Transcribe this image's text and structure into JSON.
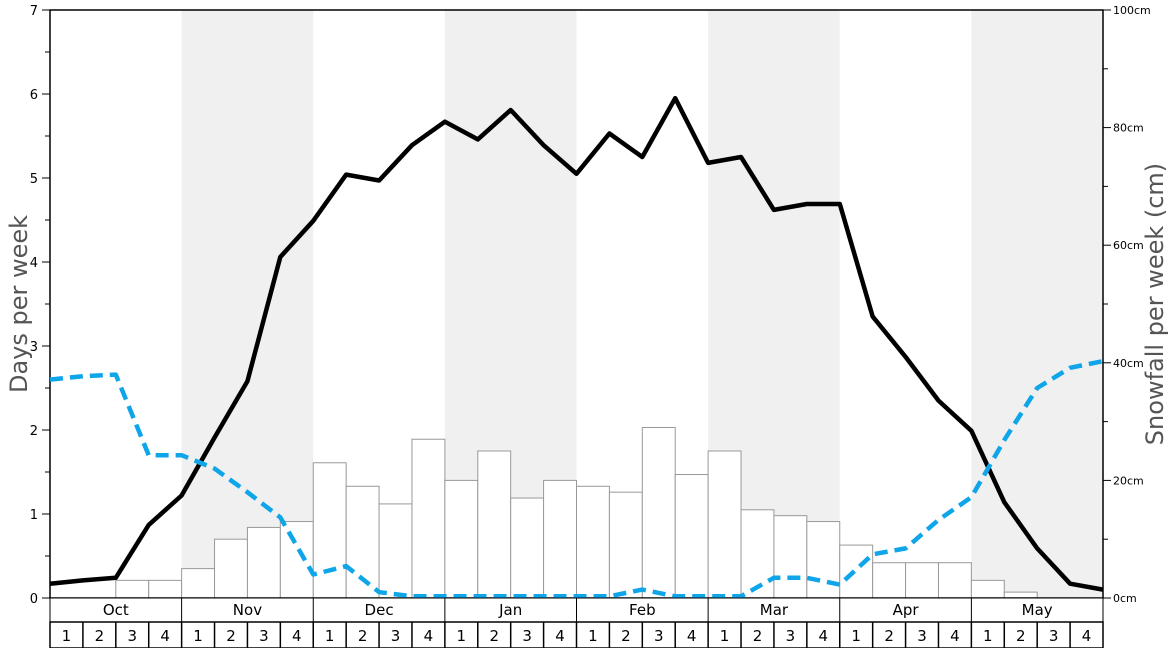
{
  "chart_data": {
    "type": "bar",
    "ylabel_left": "Days per week",
    "ylabel_right": "Snowfall per week (cm)",
    "left_axis": {
      "min": 0,
      "max": 7,
      "ticks": [
        "0",
        "1",
        "2",
        "3",
        "4",
        "5",
        "6",
        "7"
      ]
    },
    "right_axis": {
      "min": 0,
      "max": 100,
      "ticks": [
        "0cm",
        "20cm",
        "40cm",
        "60cm",
        "80cm",
        "100cm"
      ]
    },
    "months": [
      "Oct",
      "Nov",
      "Dec",
      "Jan",
      "Feb",
      "Mar",
      "Apr",
      "May"
    ],
    "week_labels": [
      "1",
      "2",
      "3",
      "4"
    ],
    "shaded_months": [
      "Nov",
      "Jan",
      "Mar",
      "May"
    ],
    "series": [
      {
        "kind": "bar",
        "axis": "right",
        "values": [
          0,
          0,
          3,
          3,
          5,
          10,
          12,
          13,
          23,
          19,
          16,
          27,
          20,
          25,
          17,
          20,
          19,
          18,
          29,
          21,
          25,
          15,
          14,
          13,
          9,
          6,
          6,
          6,
          3,
          1,
          0,
          0
        ]
      },
      {
        "kind": "line",
        "style": "solid",
        "color": "#000000",
        "axis": "left",
        "values": [
          0.17,
          0.21,
          0.24,
          0.87,
          1.22,
          1.91,
          2.58,
          4.06,
          4.49,
          5.04,
          4.97,
          5.39,
          5.67,
          5.46,
          5.81,
          5.39,
          5.05,
          5.53,
          5.25,
          5.95,
          5.18,
          5.25,
          4.62,
          4.69,
          4.69,
          3.35,
          2.87,
          2.35,
          1.99,
          1.14,
          0.59,
          0.17,
          0.1
        ]
      },
      {
        "kind": "line",
        "style": "dashed",
        "color": "#0ea5e9",
        "axis": "left",
        "values": [
          2.6,
          2.64,
          2.66,
          1.7,
          1.7,
          1.54,
          1.26,
          0.96,
          0.28,
          0.38,
          0.07,
          0.02,
          0.02,
          0.02,
          0.02,
          0.02,
          0.02,
          0.02,
          0.1,
          0.02,
          0.02,
          0.02,
          0.24,
          0.24,
          0.16,
          0.52,
          0.59,
          0.93,
          1.2,
          1.88,
          2.5,
          2.74,
          2.82
        ]
      }
    ]
  }
}
